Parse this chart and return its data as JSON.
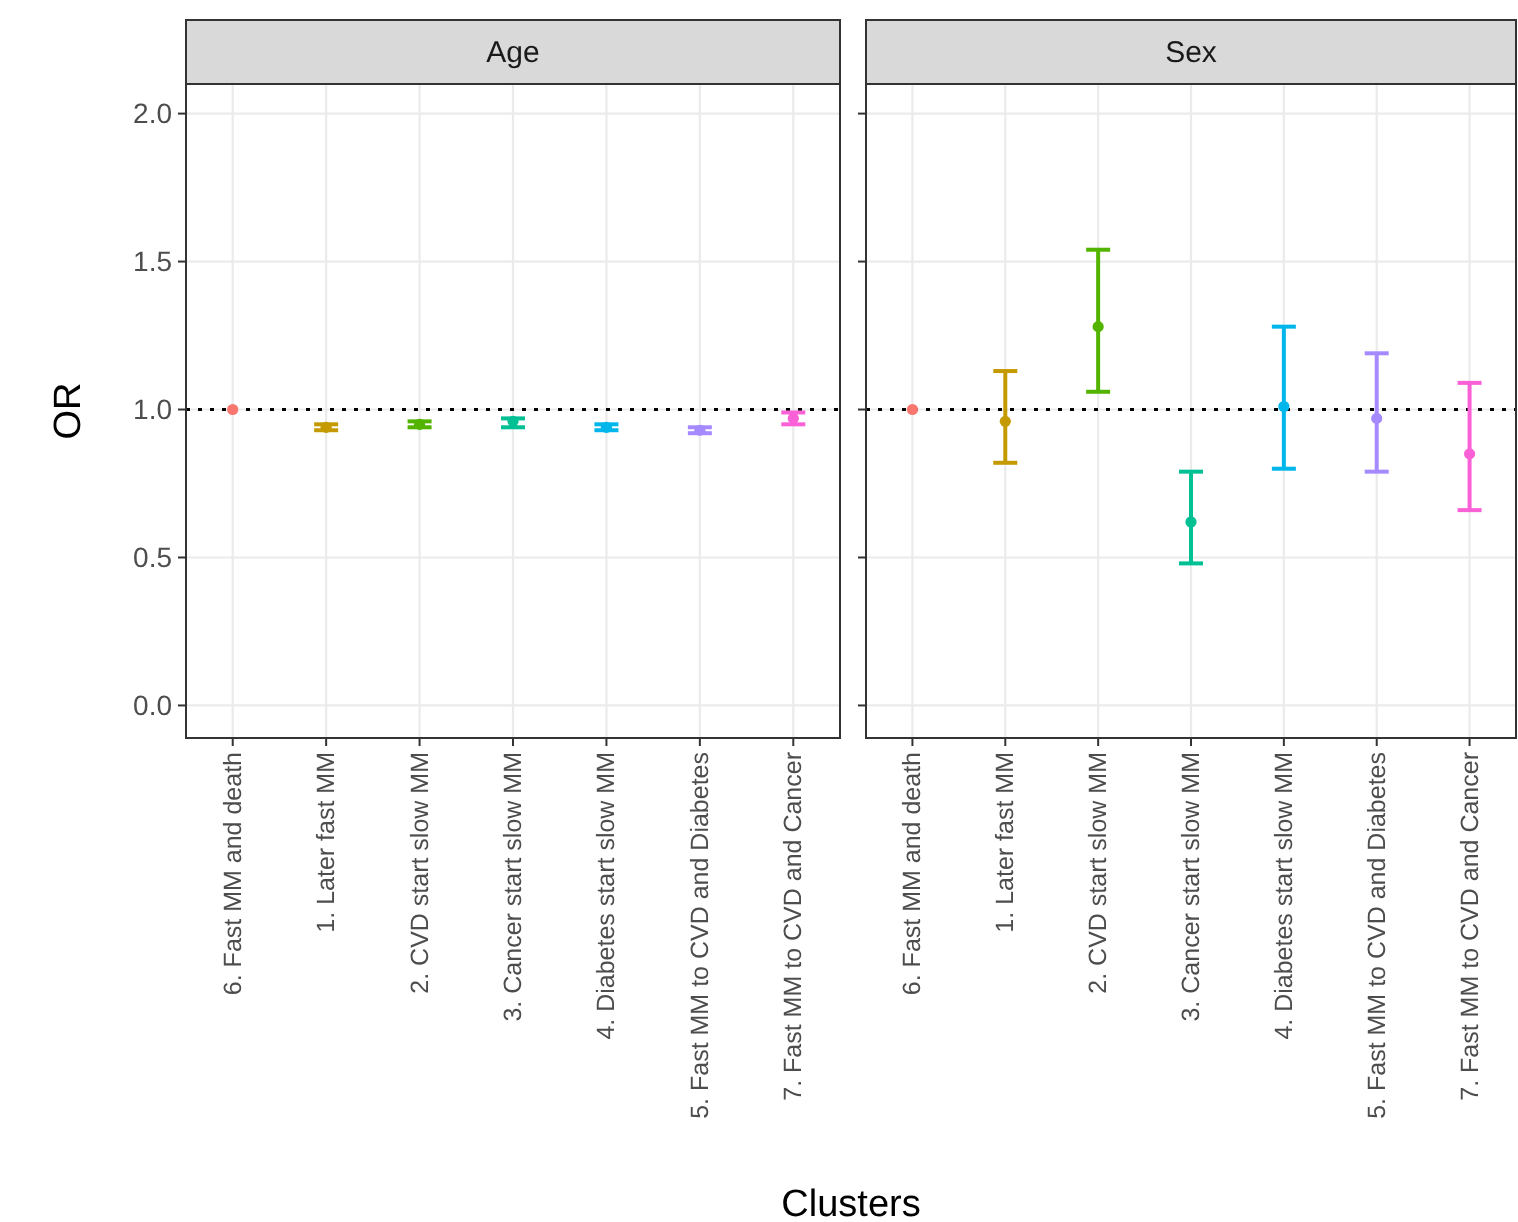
{
  "chart_data": [
    {
      "type": "scatter",
      "title": "Age",
      "ylabel": "OR",
      "xlabel": "Clusters",
      "categories": [
        "6. Fast MM and death",
        "1. Later fast MM",
        "2. CVD start slow MM",
        "3. Cancer start slow MM",
        "4. Diabetes start slow MM",
        "5. Fast MM to CVD and Diabetes",
        "7. Fast MM to CVD and Cancer"
      ],
      "values": [
        1.0,
        0.94,
        0.95,
        0.96,
        0.94,
        0.93,
        0.97
      ],
      "errors": [
        null,
        [
          0.93,
          0.95
        ],
        [
          0.94,
          0.96
        ],
        [
          0.94,
          0.97
        ],
        [
          0.93,
          0.95
        ],
        [
          0.92,
          0.94
        ],
        [
          0.95,
          0.99
        ]
      ],
      "colors": [
        "#f8766d",
        "#c49a00",
        "#53b400",
        "#00c094",
        "#00b6eb",
        "#a58aff",
        "#fb61d7"
      ],
      "ylim": [
        -0.11,
        2.1
      ],
      "yticks": [
        {
          "value": 0,
          "label": "0.0"
        },
        {
          "value": 0.5,
          "label": "0.5"
        },
        {
          "value": 1,
          "label": "1.0"
        },
        {
          "value": 1.5,
          "label": "1.5"
        },
        {
          "value": 2,
          "label": "2.0"
        }
      ],
      "ref_lines": [
        {
          "axis": "y",
          "value": 1,
          "line_style": "dotted",
          "color": "#000000"
        }
      ],
      "grid": true,
      "marker": "circle",
      "legend": false
    },
    {
      "type": "scatter",
      "title": "Sex",
      "categories": [
        "6. Fast MM and death",
        "1. Later fast MM",
        "2. CVD start slow MM",
        "3. Cancer start slow MM",
        "4. Diabetes start slow MM",
        "5. Fast MM to CVD and Diabetes",
        "7. Fast MM to CVD and Cancer"
      ],
      "values": [
        1.0,
        0.96,
        1.28,
        0.62,
        1.01,
        0.97,
        0.85
      ],
      "errors": [
        null,
        [
          0.82,
          1.13
        ],
        [
          1.06,
          1.54
        ],
        [
          0.48,
          0.79
        ],
        [
          0.8,
          1.28
        ],
        [
          0.79,
          1.19
        ],
        [
          0.66,
          1.09
        ]
      ],
      "colors": [
        "#f8766d",
        "#c49a00",
        "#53b400",
        "#00c094",
        "#00b6eb",
        "#a58aff",
        "#fb61d7"
      ],
      "ylim": [
        -0.11,
        2.1
      ],
      "yticks": [
        {
          "value": 0,
          "label": null
        },
        {
          "value": 0.5,
          "label": null
        },
        {
          "value": 1,
          "label": null
        },
        {
          "value": 1.5,
          "label": null
        },
        {
          "value": 2,
          "label": null
        }
      ],
      "ref_lines": [
        {
          "axis": "y",
          "value": 1,
          "line_style": "dotted",
          "color": "#000000"
        }
      ],
      "grid": true,
      "marker": "circle",
      "legend": false,
      "tick_labels": "x"
    }
  ]
}
